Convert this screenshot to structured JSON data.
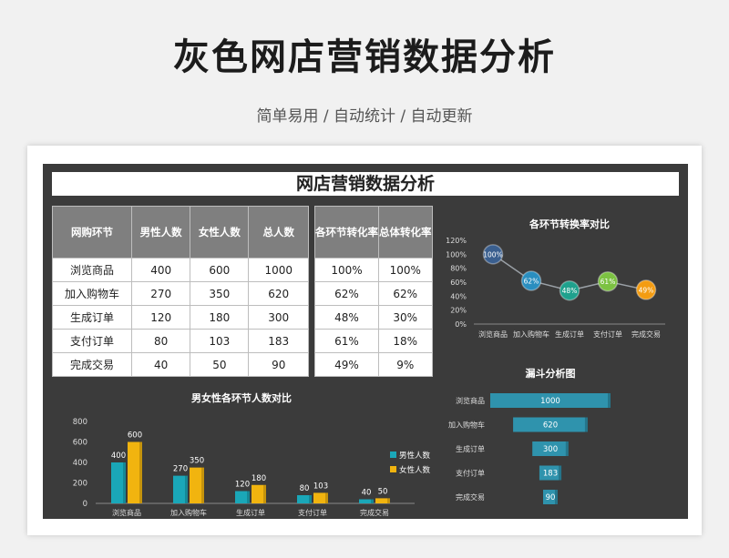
{
  "page": {
    "title": "灰色网店营销数据分析",
    "subtitle": "简单易用 / 自动统计 / 自动更新"
  },
  "sheet": {
    "title": "网店营销数据分析"
  },
  "table": {
    "headers": [
      "网购环节",
      "男性人数",
      "女性人数",
      "总人数"
    ],
    "rate_headers": [
      "各环节转化率",
      "总体转化率"
    ],
    "rows": [
      {
        "stage": "浏览商品",
        "male": "400",
        "female": "600",
        "total": "1000",
        "step_rate": "100%",
        "overall_rate": "100%"
      },
      {
        "stage": "加入购物车",
        "male": "270",
        "female": "350",
        "total": "620",
        "step_rate": "62%",
        "overall_rate": "62%"
      },
      {
        "stage": "生成订单",
        "male": "120",
        "female": "180",
        "total": "300",
        "step_rate": "48%",
        "overall_rate": "30%"
      },
      {
        "stage": "支付订单",
        "male": "80",
        "female": "103",
        "total": "183",
        "step_rate": "61%",
        "overall_rate": "18%"
      },
      {
        "stage": "完成交易",
        "male": "40",
        "female": "50",
        "total": "90",
        "step_rate": "49%",
        "overall_rate": "9%"
      }
    ]
  },
  "colors": {
    "male": "#1aa7b8",
    "female": "#f1b40f",
    "funnel": "#2f93ad",
    "line": "#9aa0a6"
  },
  "chart_data": [
    {
      "type": "line",
      "title": "各环节转换率对比",
      "categories": [
        "浏览商品",
        "加入购物车",
        "生成订单",
        "支付订单",
        "完成交易"
      ],
      "values": [
        100,
        62,
        48,
        61,
        49
      ],
      "data_labels": [
        "100%",
        "62%",
        "48%",
        "61%",
        "49%"
      ],
      "point_colors": [
        "#3a5f8f",
        "#2a8ebf",
        "#1fa18d",
        "#7cc242",
        "#f39c12"
      ],
      "ylim": [
        0,
        120
      ],
      "yticks": [
        0,
        20,
        40,
        60,
        80,
        100,
        120
      ],
      "ytick_labels": [
        "0%",
        "20%",
        "40%",
        "60%",
        "80%",
        "100%",
        "120%"
      ]
    },
    {
      "type": "bar",
      "title": "男女性各环节人数对比",
      "categories": [
        "浏览商品",
        "加入购物车",
        "生成订单",
        "支付订单",
        "完成交易"
      ],
      "series": [
        {
          "name": "男性人数",
          "values": [
            400,
            270,
            120,
            80,
            40
          ]
        },
        {
          "name": "女性人数",
          "values": [
            600,
            350,
            180,
            103,
            50
          ]
        }
      ],
      "ylim": [
        0,
        800
      ],
      "yticks": [
        0,
        200,
        400,
        600,
        800
      ],
      "legend": "right"
    },
    {
      "type": "bar",
      "title": "漏斗分析图",
      "categories": [
        "浏览商品",
        "加入购物车",
        "生成订单",
        "支付订单",
        "完成交易"
      ],
      "values": [
        1000,
        620,
        300,
        183,
        90
      ]
    }
  ]
}
